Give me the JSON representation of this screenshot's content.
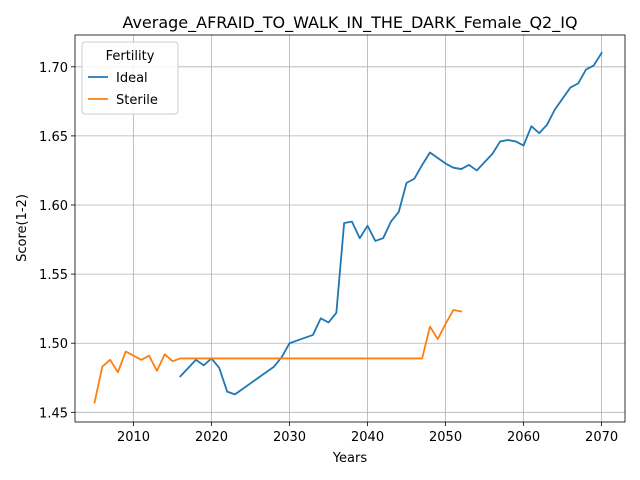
{
  "chart_data": {
    "type": "line",
    "title": "Average_AFRAID_TO_WALK_IN_THE_DARK_Female_Q2_IQ",
    "xlabel": "Years",
    "ylabel": "Score(1-2)",
    "xlim": [
      2002.5,
      2073
    ],
    "ylim": [
      1.443,
      1.723
    ],
    "xticks": [
      2010,
      2020,
      2030,
      2040,
      2050,
      2060,
      2070
    ],
    "yticks": [
      1.45,
      1.5,
      1.55,
      1.6,
      1.65,
      1.7
    ],
    "ytick_labels": [
      "1.45",
      "1.50",
      "1.55",
      "1.60",
      "1.65",
      "1.70"
    ],
    "grid": true,
    "legend": {
      "title": "Fertility",
      "position": "top-left"
    },
    "series": [
      {
        "name": "Ideal",
        "color": "#1f77b4",
        "x": [
          2016,
          2017,
          2018,
          2019,
          2020,
          2021,
          2022,
          2023,
          2024,
          2025,
          2026,
          2027,
          2028,
          2029,
          2030,
          2031,
          2032,
          2033,
          2034,
          2035,
          2036,
          2037,
          2038,
          2039,
          2040,
          2041,
          2042,
          2043,
          2044,
          2045,
          2046,
          2047,
          2048,
          2049,
          2050,
          2051,
          2052,
          2053,
          2054,
          2055,
          2056,
          2057,
          2058,
          2059,
          2060,
          2061,
          2062,
          2063,
          2064,
          2065,
          2066,
          2067,
          2068,
          2069,
          2070
        ],
        "y": [
          1.476,
          1.482,
          1.488,
          1.484,
          1.489,
          1.482,
          1.465,
          1.463,
          1.467,
          1.471,
          1.475,
          1.479,
          1.483,
          1.49,
          1.5,
          1.502,
          1.504,
          1.506,
          1.518,
          1.515,
          1.522,
          1.587,
          1.588,
          1.576,
          1.585,
          1.574,
          1.576,
          1.588,
          1.595,
          1.616,
          1.619,
          1.629,
          1.638,
          1.634,
          1.63,
          1.627,
          1.626,
          1.629,
          1.625,
          1.631,
          1.637,
          1.646,
          1.647,
          1.646,
          1.643,
          1.657,
          1.652,
          1.658,
          1.669,
          1.677,
          1.685,
          1.688,
          1.698,
          1.701,
          1.71
        ]
      },
      {
        "name": "Sterile",
        "color": "#ff7f0e",
        "x": [
          2005,
          2006,
          2007,
          2008,
          2009,
          2010,
          2011,
          2012,
          2013,
          2014,
          2015,
          2016,
          2017,
          2018,
          2019,
          2020,
          2021,
          2022,
          2023,
          2024,
          2025,
          2026,
          2027,
          2028,
          2029,
          2030,
          2031,
          2032,
          2033,
          2034,
          2035,
          2036,
          2037,
          2038,
          2039,
          2040,
          2041,
          2042,
          2043,
          2044,
          2045,
          2046,
          2047,
          2048,
          2049,
          2050,
          2051,
          2052
        ],
        "y": [
          1.457,
          1.483,
          1.488,
          1.479,
          1.494,
          1.491,
          1.488,
          1.491,
          1.48,
          1.492,
          1.487,
          1.489,
          1.489,
          1.489,
          1.489,
          1.489,
          1.489,
          1.489,
          1.489,
          1.489,
          1.489,
          1.489,
          1.489,
          1.489,
          1.489,
          1.489,
          1.489,
          1.489,
          1.489,
          1.489,
          1.489,
          1.489,
          1.489,
          1.489,
          1.489,
          1.489,
          1.489,
          1.489,
          1.489,
          1.489,
          1.489,
          1.489,
          1.489,
          1.512,
          1.503,
          1.514,
          1.524,
          1.523
        ]
      }
    ]
  }
}
